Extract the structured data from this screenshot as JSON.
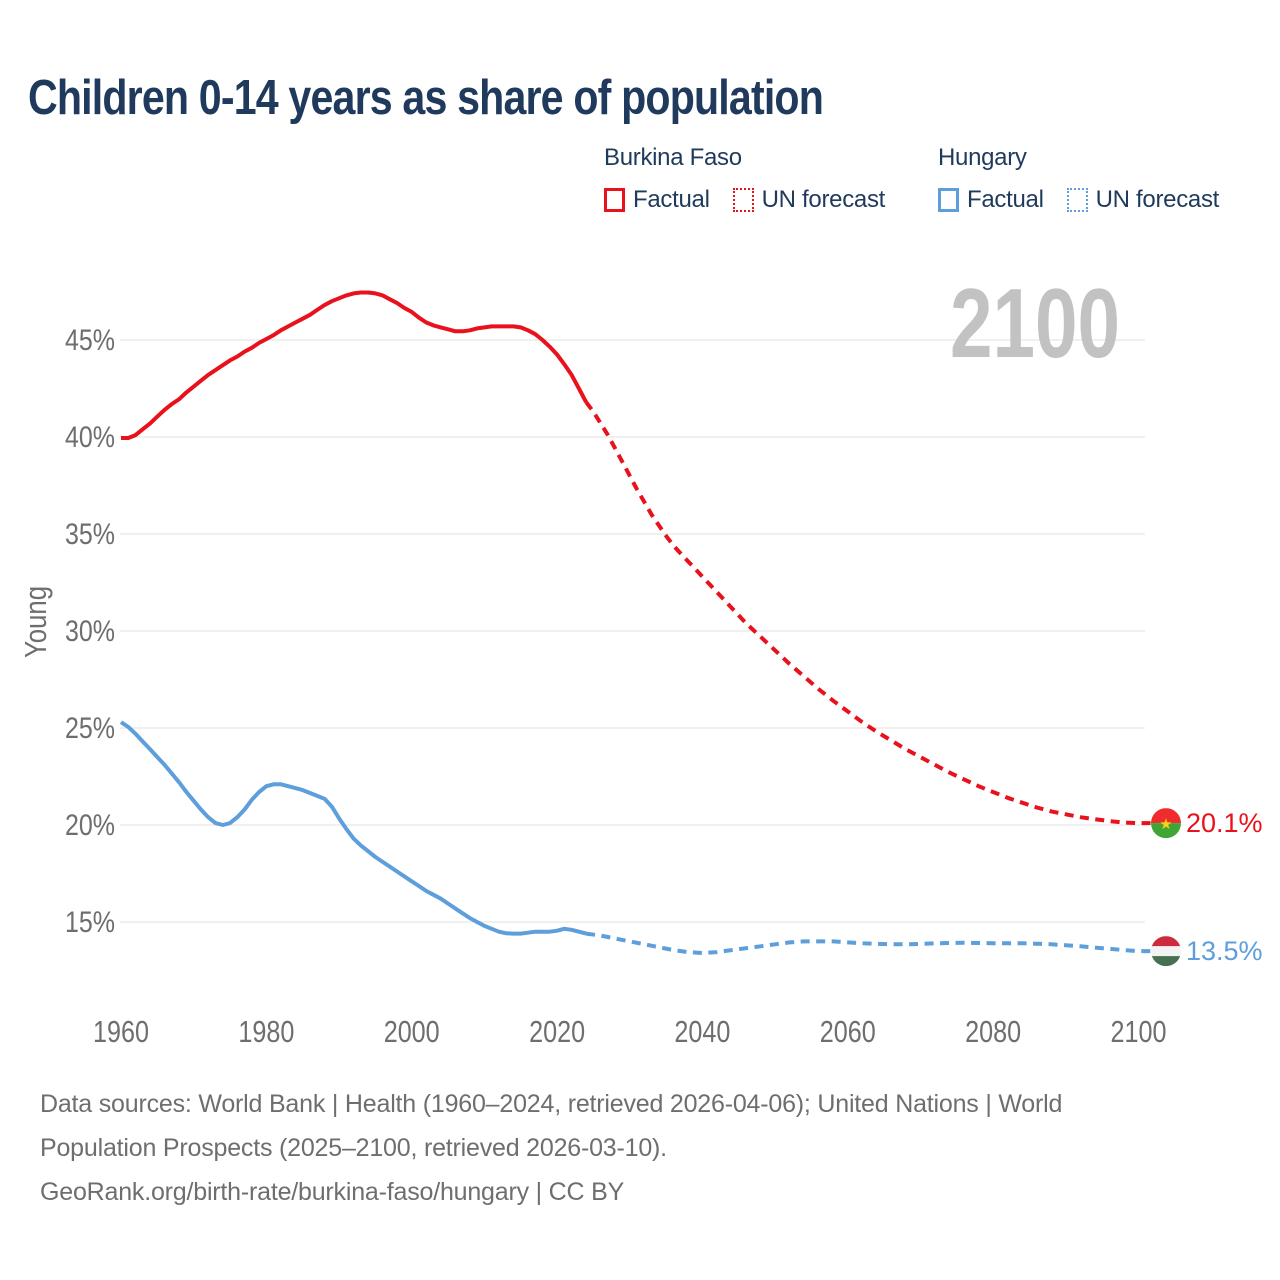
{
  "title": "Children 0-14 years as share of population",
  "legend": {
    "groups": [
      {
        "country": "Burkina Faso",
        "factual_label": "Factual",
        "forecast_label": "UN forecast",
        "color": "#e8111c"
      },
      {
        "country": "Hungary",
        "factual_label": "Factual",
        "forecast_label": "UN forecast",
        "color": "#5d9edb"
      }
    ]
  },
  "sources": {
    "line1": "Data sources: World Bank | Health (1960–2024, retrieved 2026-04-06); United Nations | World",
    "line2": "Population Prospects (2025–2100, retrieved 2026-03-10).",
    "line3": "GeoRank.org/birth-rate/burkina-faso/hungary | CC BY"
  },
  "colors": {
    "title": "#1f3a5c",
    "burkina_faso": "#e8111c",
    "hungary": "#5d9edb",
    "axis_text": "#6e6e6e",
    "gridline": "#ececec",
    "watermark": "#c2c2c2",
    "sources_text": "#6e6e6e"
  },
  "chart_data": {
    "type": "line",
    "title": "Children 0-14 years as share of population",
    "xlabel": "",
    "ylabel": "Young",
    "unit": "%",
    "grid": "horizontal",
    "legend_position": "top-right",
    "watermark": "2100",
    "x_ticks": [
      1960,
      1980,
      2000,
      2020,
      2040,
      2060,
      2080,
      2100
    ],
    "y_ticks_percent": [
      45,
      40,
      35,
      30,
      25,
      20,
      15
    ],
    "xlim": [
      1960,
      2100
    ],
    "ylim_percent": [
      12.5,
      48.5
    ],
    "series": [
      {
        "id": "burkina-faso-factual",
        "country": "Burkina Faso",
        "segment": "Factual",
        "style": "solid",
        "color": "#e8111c",
        "points": [
          [
            1960,
            39.95
          ],
          [
            1961,
            39.95
          ],
          [
            1962,
            40.1
          ],
          [
            1963,
            40.4
          ],
          [
            1964,
            40.7
          ],
          [
            1965,
            41.05
          ],
          [
            1966,
            41.4
          ],
          [
            1967,
            41.7
          ],
          [
            1968,
            41.95
          ],
          [
            1969,
            42.3
          ],
          [
            1970,
            42.6
          ],
          [
            1971,
            42.9
          ],
          [
            1972,
            43.2
          ],
          [
            1973,
            43.45
          ],
          [
            1974,
            43.7
          ],
          [
            1975,
            43.95
          ],
          [
            1976,
            44.15
          ],
          [
            1977,
            44.4
          ],
          [
            1978,
            44.6
          ],
          [
            1979,
            44.85
          ],
          [
            1980,
            45.05
          ],
          [
            1981,
            45.25
          ],
          [
            1982,
            45.5
          ],
          [
            1983,
            45.7
          ],
          [
            1984,
            45.9
          ],
          [
            1985,
            46.1
          ],
          [
            1986,
            46.3
          ],
          [
            1987,
            46.55
          ],
          [
            1988,
            46.8
          ],
          [
            1989,
            47.0
          ],
          [
            1990,
            47.15
          ],
          [
            1991,
            47.3
          ],
          [
            1992,
            47.4
          ],
          [
            1993,
            47.45
          ],
          [
            1994,
            47.45
          ],
          [
            1995,
            47.4
          ],
          [
            1996,
            47.3
          ],
          [
            1997,
            47.1
          ],
          [
            1998,
            46.9
          ],
          [
            1999,
            46.65
          ],
          [
            2000,
            46.45
          ],
          [
            2001,
            46.15
          ],
          [
            2002,
            45.9
          ],
          [
            2003,
            45.75
          ],
          [
            2004,
            45.65
          ],
          [
            2005,
            45.55
          ],
          [
            2006,
            45.45
          ],
          [
            2007,
            45.45
          ],
          [
            2008,
            45.5
          ],
          [
            2009,
            45.6
          ],
          [
            2010,
            45.65
          ],
          [
            2011,
            45.7
          ],
          [
            2012,
            45.7
          ],
          [
            2013,
            45.7
          ],
          [
            2014,
            45.7
          ],
          [
            2015,
            45.65
          ],
          [
            2016,
            45.5
          ],
          [
            2017,
            45.3
          ],
          [
            2018,
            45.0
          ],
          [
            2019,
            44.65
          ],
          [
            2020,
            44.25
          ],
          [
            2021,
            43.75
          ],
          [
            2022,
            43.2
          ],
          [
            2023,
            42.5
          ],
          [
            2024,
            41.8
          ]
        ]
      },
      {
        "id": "burkina-faso-forecast",
        "country": "Burkina Faso",
        "segment": "UN forecast",
        "style": "dashed",
        "color": "#e8111c",
        "points": [
          [
            2024,
            41.8
          ],
          [
            2025,
            41.3
          ],
          [
            2026,
            40.7
          ],
          [
            2027,
            40.1
          ],
          [
            2028,
            39.4
          ],
          [
            2029,
            38.7
          ],
          [
            2030,
            38.0
          ],
          [
            2031,
            37.3
          ],
          [
            2032,
            36.65
          ],
          [
            2033,
            36.0
          ],
          [
            2034,
            35.45
          ],
          [
            2035,
            34.9
          ],
          [
            2036,
            34.4
          ],
          [
            2037,
            34.0
          ],
          [
            2038,
            33.6
          ],
          [
            2039,
            33.2
          ],
          [
            2040,
            32.8
          ],
          [
            2042,
            32.0
          ],
          [
            2044,
            31.2
          ],
          [
            2046,
            30.4
          ],
          [
            2048,
            29.7
          ],
          [
            2050,
            29.0
          ],
          [
            2052,
            28.3
          ],
          [
            2054,
            27.65
          ],
          [
            2056,
            27.0
          ],
          [
            2058,
            26.4
          ],
          [
            2060,
            25.85
          ],
          [
            2062,
            25.3
          ],
          [
            2064,
            24.8
          ],
          [
            2066,
            24.35
          ],
          [
            2068,
            23.9
          ],
          [
            2070,
            23.5
          ],
          [
            2072,
            23.1
          ],
          [
            2074,
            22.7
          ],
          [
            2076,
            22.35
          ],
          [
            2078,
            22.0
          ],
          [
            2080,
            21.7
          ],
          [
            2082,
            21.4
          ],
          [
            2084,
            21.15
          ],
          [
            2086,
            20.9
          ],
          [
            2088,
            20.7
          ],
          [
            2090,
            20.55
          ],
          [
            2092,
            20.4
          ],
          [
            2094,
            20.3
          ],
          [
            2096,
            20.2
          ],
          [
            2098,
            20.13
          ],
          [
            2100,
            20.1
          ]
        ]
      },
      {
        "id": "hungary-factual",
        "country": "Hungary",
        "segment": "Factual",
        "style": "solid",
        "color": "#5d9edb",
        "points": [
          [
            1960,
            25.3
          ],
          [
            1961,
            25.05
          ],
          [
            1962,
            24.7
          ],
          [
            1963,
            24.3
          ],
          [
            1964,
            23.9
          ],
          [
            1965,
            23.5
          ],
          [
            1966,
            23.1
          ],
          [
            1967,
            22.65
          ],
          [
            1968,
            22.2
          ],
          [
            1969,
            21.7
          ],
          [
            1970,
            21.25
          ],
          [
            1971,
            20.8
          ],
          [
            1972,
            20.4
          ],
          [
            1973,
            20.1
          ],
          [
            1974,
            20.0
          ],
          [
            1975,
            20.1
          ],
          [
            1976,
            20.4
          ],
          [
            1977,
            20.8
          ],
          [
            1978,
            21.3
          ],
          [
            1979,
            21.7
          ],
          [
            1980,
            22.0
          ],
          [
            1981,
            22.1
          ],
          [
            1982,
            22.1
          ],
          [
            1983,
            22.0
          ],
          [
            1984,
            21.9
          ],
          [
            1985,
            21.8
          ],
          [
            1986,
            21.65
          ],
          [
            1987,
            21.5
          ],
          [
            1988,
            21.35
          ],
          [
            1989,
            20.95
          ],
          [
            1990,
            20.35
          ],
          [
            1991,
            19.8
          ],
          [
            1992,
            19.3
          ],
          [
            1993,
            18.95
          ],
          [
            1994,
            18.65
          ],
          [
            1995,
            18.35
          ],
          [
            1996,
            18.1
          ],
          [
            1997,
            17.85
          ],
          [
            1998,
            17.6
          ],
          [
            1999,
            17.35
          ],
          [
            2000,
            17.1
          ],
          [
            2001,
            16.85
          ],
          [
            2002,
            16.6
          ],
          [
            2003,
            16.4
          ],
          [
            2004,
            16.2
          ],
          [
            2005,
            15.95
          ],
          [
            2006,
            15.7
          ],
          [
            2007,
            15.45
          ],
          [
            2008,
            15.2
          ],
          [
            2009,
            15.0
          ],
          [
            2010,
            14.8
          ],
          [
            2011,
            14.65
          ],
          [
            2012,
            14.5
          ],
          [
            2013,
            14.42
          ],
          [
            2014,
            14.4
          ],
          [
            2015,
            14.4
          ],
          [
            2016,
            14.45
          ],
          [
            2017,
            14.5
          ],
          [
            2018,
            14.5
          ],
          [
            2019,
            14.5
          ],
          [
            2020,
            14.55
          ],
          [
            2021,
            14.65
          ],
          [
            2022,
            14.6
          ],
          [
            2023,
            14.5
          ],
          [
            2024,
            14.4
          ]
        ]
      },
      {
        "id": "hungary-forecast",
        "country": "Hungary",
        "segment": "UN forecast",
        "style": "dashed",
        "color": "#5d9edb",
        "points": [
          [
            2024,
            14.4
          ],
          [
            2026,
            14.3
          ],
          [
            2028,
            14.15
          ],
          [
            2030,
            14.0
          ],
          [
            2032,
            13.85
          ],
          [
            2034,
            13.7
          ],
          [
            2036,
            13.55
          ],
          [
            2038,
            13.45
          ],
          [
            2040,
            13.4
          ],
          [
            2042,
            13.45
          ],
          [
            2044,
            13.55
          ],
          [
            2046,
            13.65
          ],
          [
            2048,
            13.75
          ],
          [
            2050,
            13.85
          ],
          [
            2052,
            13.95
          ],
          [
            2054,
            14.0
          ],
          [
            2056,
            14.0
          ],
          [
            2058,
            14.0
          ],
          [
            2060,
            13.95
          ],
          [
            2062,
            13.9
          ],
          [
            2064,
            13.87
          ],
          [
            2066,
            13.85
          ],
          [
            2068,
            13.85
          ],
          [
            2070,
            13.87
          ],
          [
            2072,
            13.9
          ],
          [
            2074,
            13.92
          ],
          [
            2076,
            13.93
          ],
          [
            2078,
            13.92
          ],
          [
            2080,
            13.9
          ],
          [
            2082,
            13.9
          ],
          [
            2084,
            13.9
          ],
          [
            2086,
            13.88
          ],
          [
            2088,
            13.85
          ],
          [
            2090,
            13.8
          ],
          [
            2092,
            13.75
          ],
          [
            2094,
            13.68
          ],
          [
            2096,
            13.62
          ],
          [
            2098,
            13.55
          ],
          [
            2100,
            13.5
          ]
        ]
      }
    ],
    "end_labels": [
      {
        "text": "20.1%",
        "value": 20.1,
        "year": 2100,
        "country": "Burkina Faso",
        "flag": "burkina-faso",
        "color": "#e8111c"
      },
      {
        "text": "13.5%",
        "value": 13.5,
        "year": 2100,
        "country": "Hungary",
        "flag": "hungary",
        "color": "#5d9edb"
      }
    ],
    "flags": {
      "burkina-faso": {
        "type": "halves",
        "top": "#ef2b2d",
        "bottom": "#3fa535",
        "star": "#fcd116"
      },
      "hungary": {
        "type": "stripes",
        "stripes": [
          "#cd2a3e",
          "#f2f2f2",
          "#477050"
        ]
      }
    }
  }
}
